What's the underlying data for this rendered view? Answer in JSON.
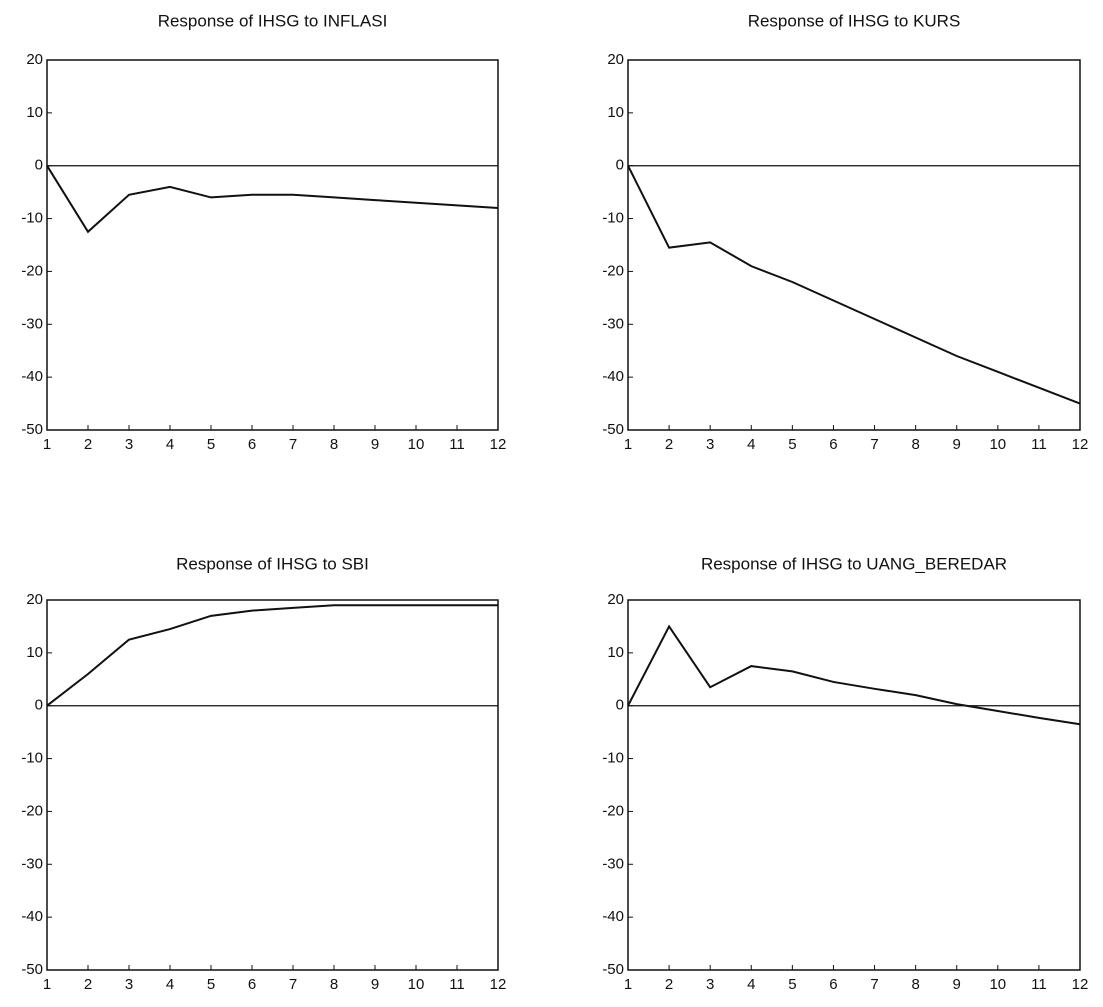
{
  "chart_data": [
    {
      "type": "line",
      "title": "Response of IHSG to INFLASI",
      "x": [
        1,
        2,
        3,
        4,
        5,
        6,
        7,
        8,
        9,
        10,
        11,
        12
      ],
      "values": [
        0,
        -12.5,
        -5.5,
        -4,
        -6,
        -5.5,
        -5.5,
        -6,
        -6.5,
        -7,
        -7.5,
        -8
      ],
      "color": "#111111",
      "xlim": [
        1,
        12
      ],
      "xticks": [
        1,
        2,
        3,
        4,
        5,
        6,
        7,
        8,
        9,
        10,
        11,
        12
      ],
      "ylim": [
        -50,
        20
      ],
      "yticks": [
        -50,
        -40,
        -30,
        -20,
        -10,
        0,
        10,
        20
      ]
    },
    {
      "type": "line",
      "title": "Response of IHSG to KURS",
      "x": [
        1,
        2,
        3,
        4,
        5,
        6,
        7,
        8,
        9,
        10,
        11,
        12
      ],
      "values": [
        0,
        -15.5,
        -14.5,
        -19,
        -22,
        -25.5,
        -29,
        -32.5,
        -36,
        -39,
        -42,
        -45
      ],
      "color": "#111111",
      "xlim": [
        1,
        12
      ],
      "xticks": [
        1,
        2,
        3,
        4,
        5,
        6,
        7,
        8,
        9,
        10,
        11,
        12
      ],
      "ylim": [
        -50,
        20
      ],
      "yticks": [
        -50,
        -40,
        -30,
        -20,
        -10,
        0,
        10,
        20
      ]
    },
    {
      "type": "line",
      "title": "Response of IHSG to SBI",
      "x": [
        1,
        2,
        3,
        4,
        5,
        6,
        7,
        8,
        9,
        10,
        11,
        12
      ],
      "values": [
        0,
        6,
        12.5,
        14.5,
        17,
        18,
        18.5,
        19,
        19,
        19,
        19,
        19
      ],
      "color": "#111111",
      "xlim": [
        1,
        12
      ],
      "xticks": [
        1,
        2,
        3,
        4,
        5,
        6,
        7,
        8,
        9,
        10,
        11,
        12
      ],
      "ylim": [
        -50,
        20
      ],
      "yticks": [
        -50,
        -40,
        -30,
        -20,
        -10,
        0,
        10,
        20
      ]
    },
    {
      "type": "line",
      "title": "Response of IHSG to UANG_BEREDAR",
      "x": [
        1,
        2,
        3,
        4,
        5,
        6,
        7,
        8,
        9,
        10,
        11,
        12
      ],
      "values": [
        0,
        15,
        3.5,
        7.5,
        6.5,
        4.5,
        3.2,
        2,
        0.3,
        -1,
        -2.3,
        -3.5
      ],
      "color": "#111111",
      "xlim": [
        1,
        12
      ],
      "xticks": [
        1,
        2,
        3,
        4,
        5,
        6,
        7,
        8,
        9,
        10,
        11,
        12
      ],
      "ylim": [
        -50,
        20
      ],
      "yticks": [
        -50,
        -40,
        -30,
        -20,
        -10,
        0,
        10,
        20
      ]
    }
  ]
}
